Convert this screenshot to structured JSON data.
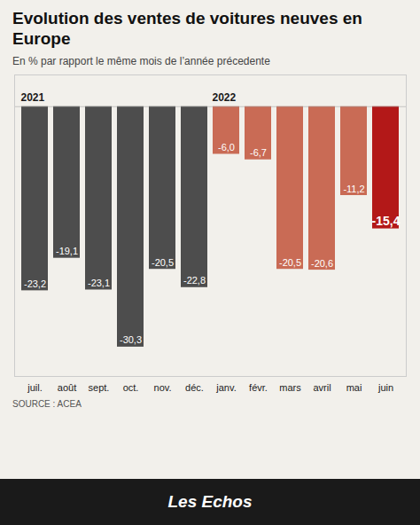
{
  "chart_data": {
    "type": "bar",
    "title": "Evolution des ventes de voitures neuves en Europe",
    "subtitle": "En % par rapport le même mois de l’année précedente",
    "source": "SOURCE : ACEA",
    "footer": "Les Echos",
    "categories": [
      "juil.",
      "août",
      "sept.",
      "oct.",
      "nov.",
      "déc.",
      "janv.",
      "févr.",
      "mars",
      "avril",
      "mai",
      "juin"
    ],
    "values": [
      -23.2,
      -19.1,
      -23.1,
      -30.3,
      -20.5,
      -22.8,
      -6.0,
      -6.7,
      -20.5,
      -20.6,
      -11.2,
      -15.4
    ],
    "value_labels": [
      "-23,2",
      "-19,1",
      "-23,1",
      "-30,3",
      "-20,5",
      "-22,8",
      "-6,0",
      "-6,7",
      "-20,5",
      "-20,6",
      "-11,2",
      "-15,4"
    ],
    "colors": [
      "#4d4d4d",
      "#4d4d4d",
      "#4d4d4d",
      "#4d4d4d",
      "#4d4d4d",
      "#4d4d4d",
      "#c96b55",
      "#c96b55",
      "#c96b55",
      "#c96b55",
      "#c96b55",
      "#b31818"
    ],
    "annotations": [
      {
        "text": "2021",
        "category": "juil."
      },
      {
        "text": "2022",
        "category": "janv."
      }
    ],
    "ylim": [
      -34,
      4
    ],
    "data_labels": true,
    "tick_labels": "x",
    "grid": false
  }
}
